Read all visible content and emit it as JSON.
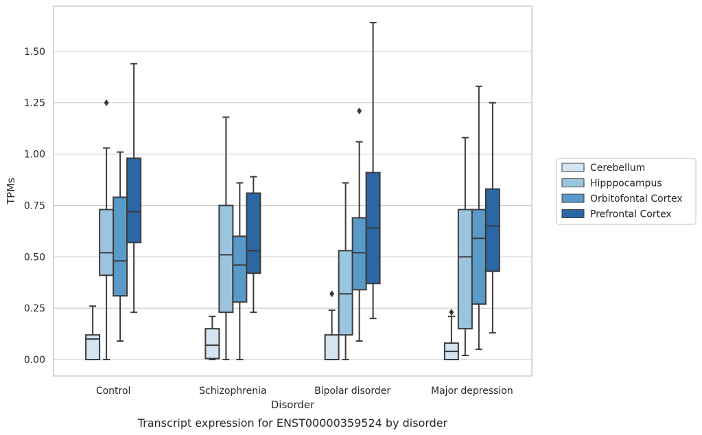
{
  "caption": "Transcript expression for ENST00000359524 by disorder",
  "chart_data": {
    "type": "box",
    "xlabel": "Disorder",
    "ylabel": "TPMs",
    "ylim": [
      -0.08,
      1.72
    ],
    "yticks": [
      0.0,
      0.25,
      0.5,
      0.75,
      1.0,
      1.25,
      1.5
    ],
    "ytick_labels": [
      "0.00",
      "0.25",
      "0.50",
      "0.75",
      "1.00",
      "1.25",
      "1.50"
    ],
    "grid": "horizontal",
    "legend_position": "right",
    "categories": [
      "Control",
      "Schizophrenia",
      "Bipolar disorder",
      "Major depression"
    ],
    "series": [
      {
        "name": "Cerebellum",
        "color": "#d4e4f3",
        "boxes": [
          {
            "whislo": 0.0,
            "q1": 0.0,
            "med": 0.1,
            "q3": 0.12,
            "whishi": 0.26,
            "fliers": []
          },
          {
            "whislo": 0.0,
            "q1": 0.005,
            "med": 0.07,
            "q3": 0.15,
            "whishi": 0.21,
            "fliers": []
          },
          {
            "whislo": 0.0,
            "q1": 0.0,
            "med": 0.0,
            "q3": 0.12,
            "whishi": 0.24,
            "fliers": [
              0.32
            ]
          },
          {
            "whislo": 0.0,
            "q1": 0.0,
            "med": 0.04,
            "q3": 0.08,
            "whishi": 0.21,
            "fliers": [
              0.23
            ]
          }
        ]
      },
      {
        "name": "Hipppocampus",
        "color": "#9bc4de",
        "boxes": [
          {
            "whislo": 0.0,
            "q1": 0.41,
            "med": 0.52,
            "q3": 0.73,
            "whishi": 1.03,
            "fliers": [
              1.25
            ]
          },
          {
            "whislo": 0.0,
            "q1": 0.23,
            "med": 0.51,
            "q3": 0.75,
            "whishi": 1.18,
            "fliers": []
          },
          {
            "whislo": 0.0,
            "q1": 0.12,
            "med": 0.32,
            "q3": 0.53,
            "whishi": 0.86,
            "fliers": []
          },
          {
            "whislo": 0.02,
            "q1": 0.15,
            "med": 0.5,
            "q3": 0.73,
            "whishi": 1.08,
            "fliers": []
          }
        ]
      },
      {
        "name": "Orbitofontal Cortex",
        "color": "#5a9ac8",
        "boxes": [
          {
            "whislo": 0.09,
            "q1": 0.31,
            "med": 0.48,
            "q3": 0.79,
            "whishi": 1.01,
            "fliers": []
          },
          {
            "whislo": 0.0,
            "q1": 0.28,
            "med": 0.46,
            "q3": 0.6,
            "whishi": 0.86,
            "fliers": []
          },
          {
            "whislo": 0.09,
            "q1": 0.34,
            "med": 0.52,
            "q3": 0.69,
            "whishi": 1.06,
            "fliers": [
              1.21
            ]
          },
          {
            "whislo": 0.05,
            "q1": 0.27,
            "med": 0.59,
            "q3": 0.73,
            "whishi": 1.33,
            "fliers": []
          }
        ]
      },
      {
        "name": "Prefrontal Cortex",
        "color": "#2b67a4",
        "boxes": [
          {
            "whislo": 0.23,
            "q1": 0.57,
            "med": 0.72,
            "q3": 0.98,
            "whishi": 1.44,
            "fliers": []
          },
          {
            "whislo": 0.23,
            "q1": 0.42,
            "med": 0.53,
            "q3": 0.81,
            "whishi": 0.89,
            "fliers": []
          },
          {
            "whislo": 0.2,
            "q1": 0.37,
            "med": 0.64,
            "q3": 0.91,
            "whishi": 1.64,
            "fliers": []
          },
          {
            "whislo": 0.13,
            "q1": 0.43,
            "med": 0.65,
            "q3": 0.83,
            "whishi": 1.25,
            "fliers": []
          }
        ]
      }
    ]
  }
}
